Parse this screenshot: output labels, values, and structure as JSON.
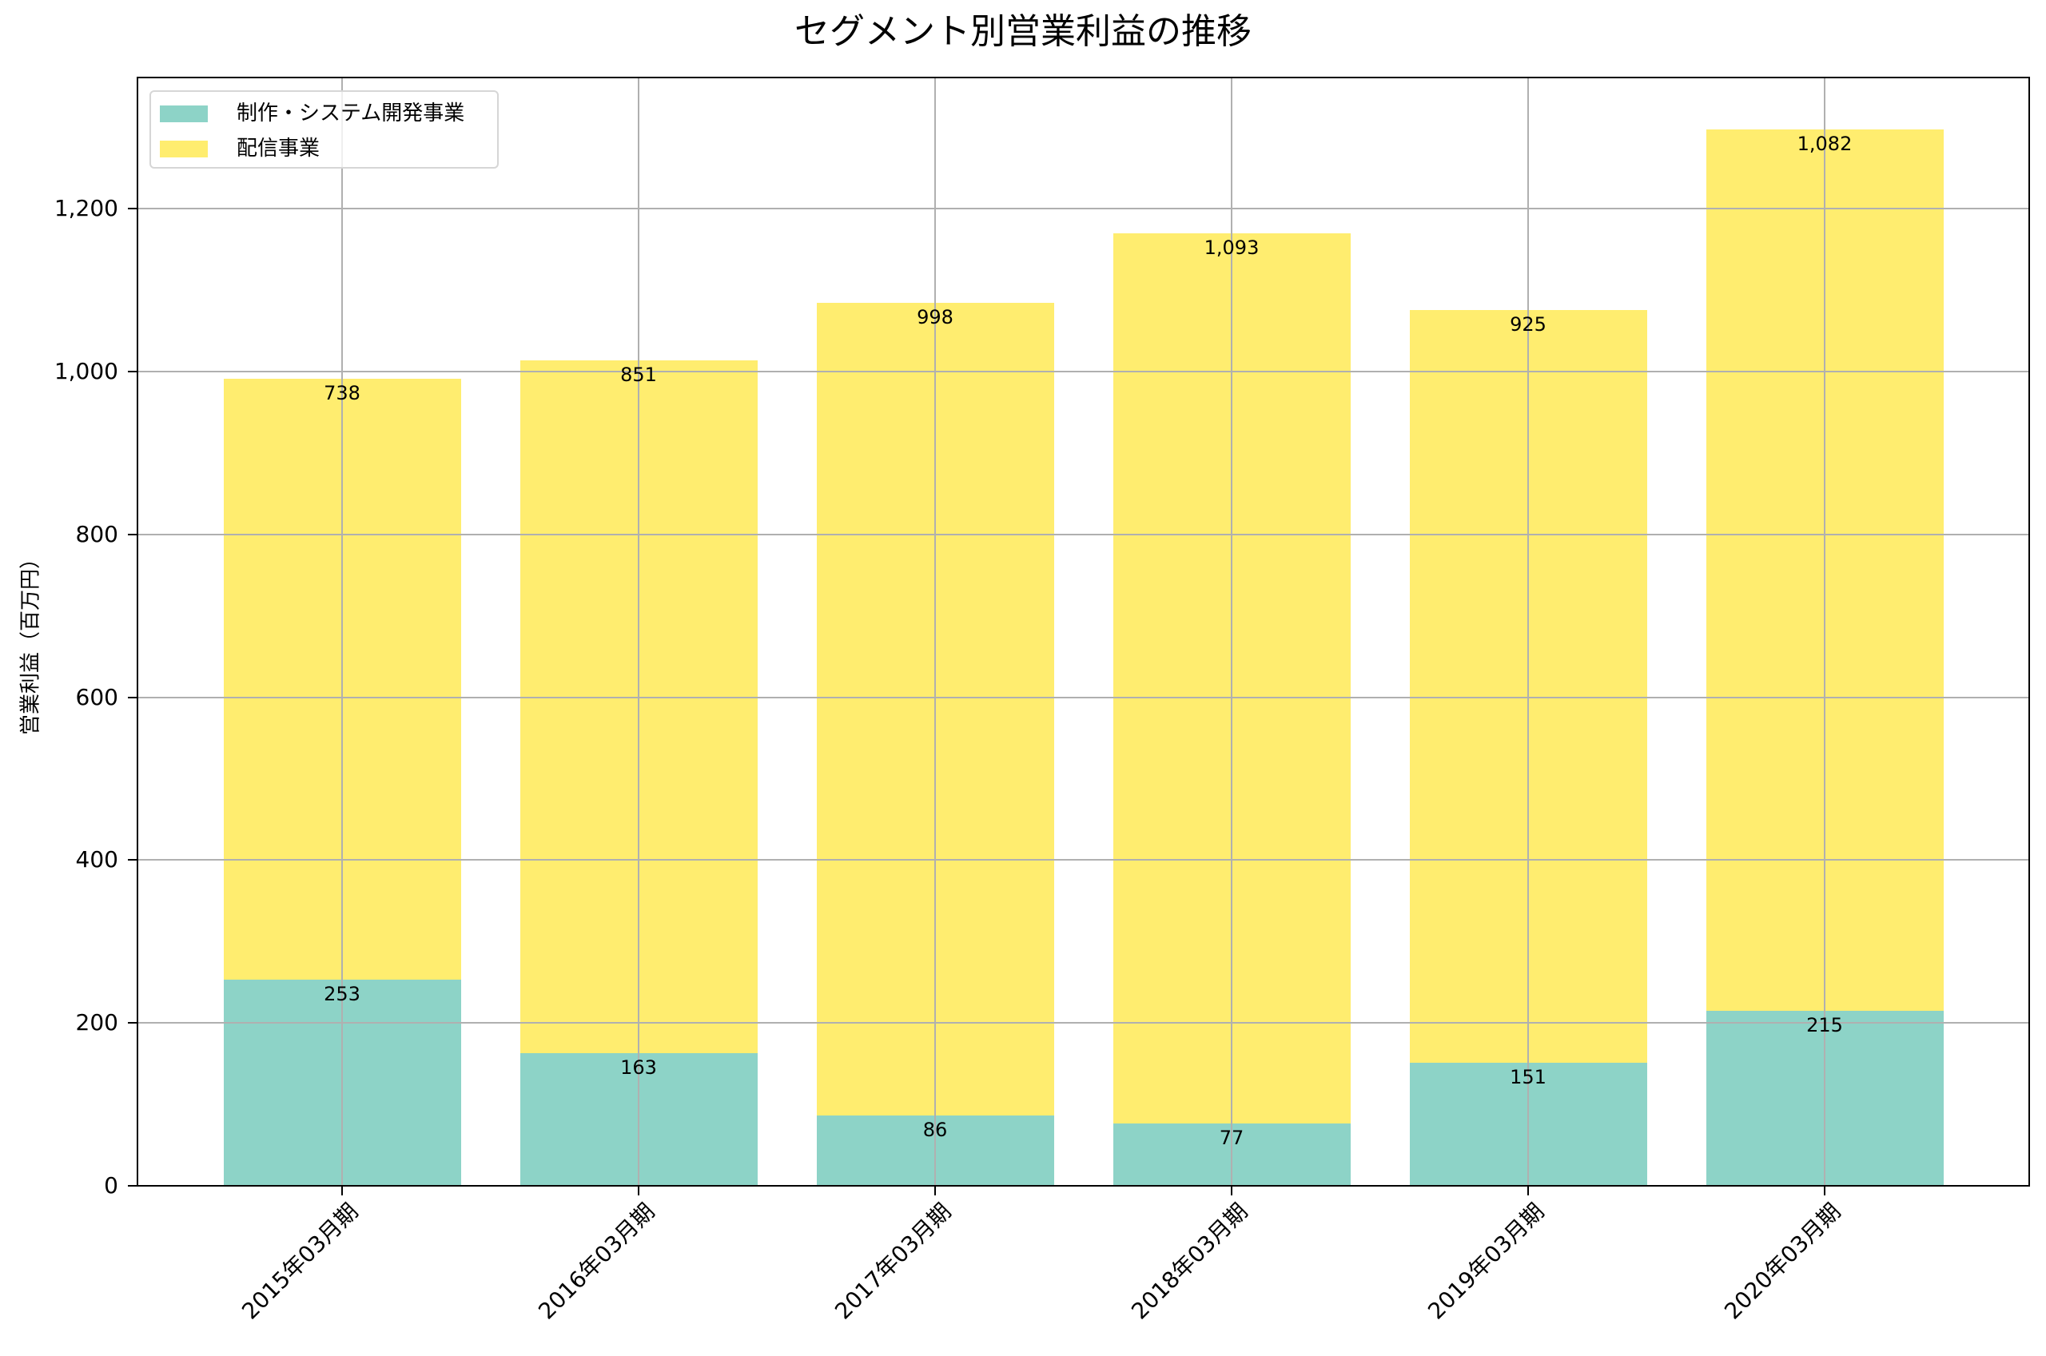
{
  "chart_data": {
    "type": "bar",
    "stacked": true,
    "title": "セグメント別営業利益の推移",
    "xlabel": "",
    "ylabel": "営業利益（百万円）",
    "ylim": [
      0,
      1361
    ],
    "yticks": [
      0,
      200,
      400,
      600,
      800,
      1000,
      1200
    ],
    "ytick_labels": [
      "0",
      "200",
      "400",
      "600",
      "800",
      "1,000",
      "1,200"
    ],
    "categories": [
      "2015年03月期",
      "2016年03月期",
      "2017年03月期",
      "2018年03月期",
      "2019年03月期",
      "2020年03月期"
    ],
    "series": [
      {
        "name": "制作・システム開発事業",
        "color": "#8dd3c7",
        "values": [
          253,
          163,
          86,
          77,
          151,
          215
        ],
        "labels": [
          "253",
          "163",
          "86",
          "77",
          "151",
          "215"
        ]
      },
      {
        "name": "配信事業",
        "color": "#ffed6f",
        "values": [
          738,
          851,
          998,
          1093,
          925,
          1082
        ],
        "labels": [
          "738",
          "851",
          "998",
          "1,093",
          "925",
          "1,082"
        ]
      }
    ],
    "grid": true,
    "legend_position": "upper left",
    "xtick_rotation": 45
  },
  "colors": {
    "grid": "#b0b0b0",
    "axis": "#000000"
  }
}
